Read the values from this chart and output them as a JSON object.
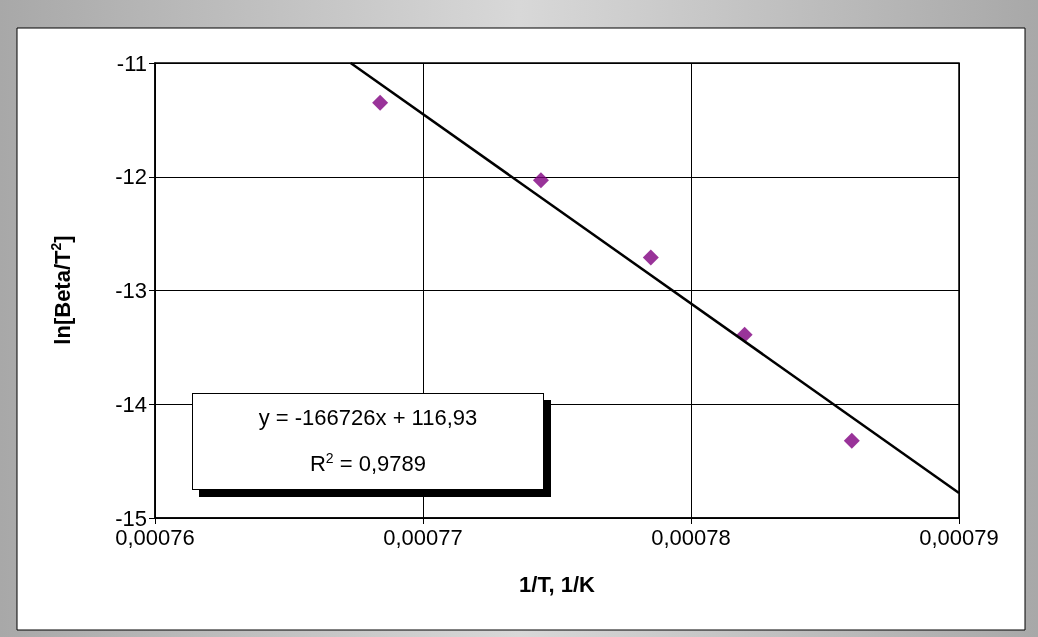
{
  "chart_data": {
    "type": "scatter",
    "xlabel": "1/T, 1/K",
    "ylabel": "ln[Beta/T$^{2}$]",
    "xlim": [
      0.00076,
      0.00079
    ],
    "xticks": [
      {
        "value": 0.00076,
        "label": "0,00076"
      },
      {
        "value": 0.00077,
        "label": "0,00077"
      },
      {
        "value": 0.00078,
        "label": "0,00078"
      },
      {
        "value": 0.00079,
        "label": "0,00079"
      }
    ],
    "ylim": [
      -15,
      -11
    ],
    "yticks": [
      -15,
      -14,
      -13,
      -12,
      -11
    ],
    "grid": true,
    "marker": "diamond",
    "series": [
      {
        "color": "#800080",
        "x": [
          0.0007684,
          0.0007744,
          0.0007785,
          0.000782,
          0.000786
        ],
        "values": [
          -11.35,
          -12.03,
          -12.71,
          -13.39,
          -14.32
        ]
      },
      {
        "type": "line",
        "marker": "none",
        "color": "#000000",
        "x": [
          0.0007673,
          0.00079
        ],
        "values": [
          -11.0,
          -14.78
        ]
      }
    ],
    "annotations": [
      "y = -166726x + 116,93",
      "R$^{2}$ = 0,9789"
    ]
  }
}
